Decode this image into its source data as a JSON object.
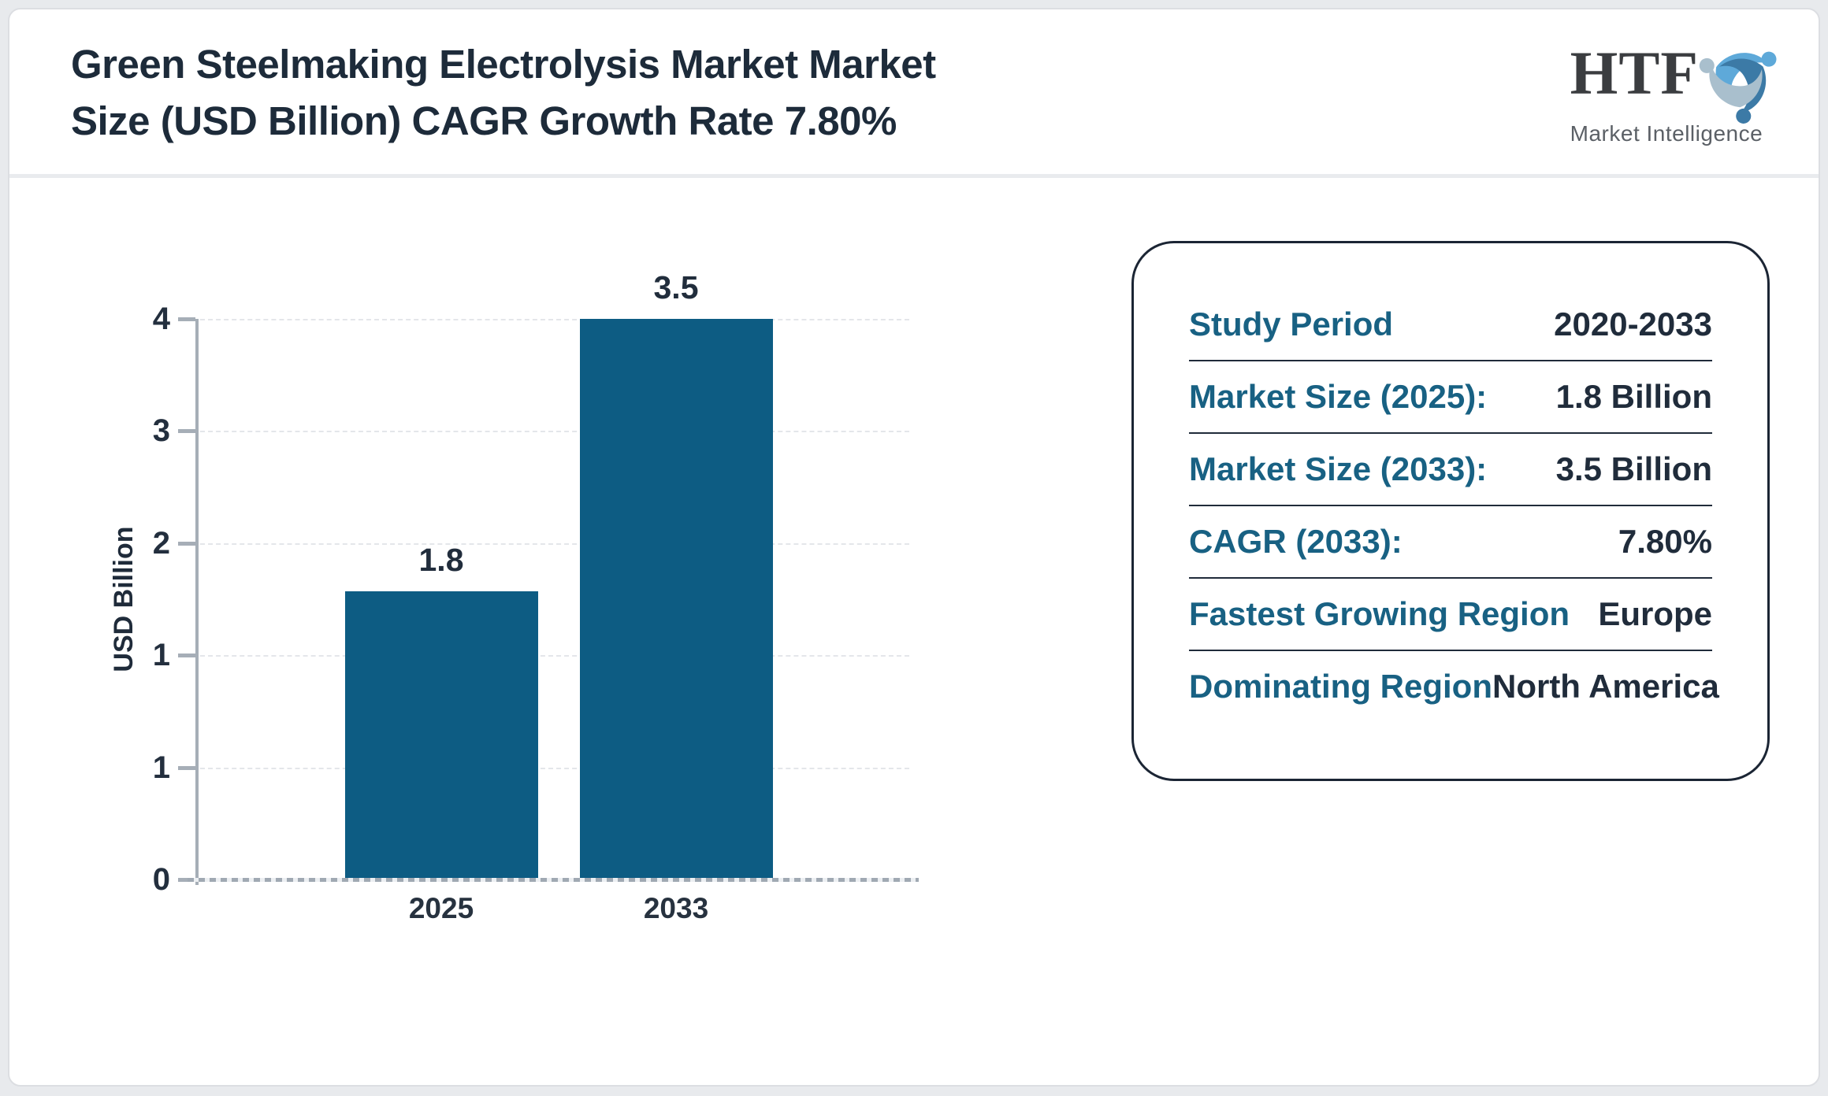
{
  "header": {
    "title": "Green Steelmaking Electrolysis Market Market Size (USD Billion) CAGR Growth Rate 7.80%",
    "title_lines": [
      "Green Steelmaking Electrolysis Market Market",
      "Size (USD Billion) CAGR Growth Rate 7.80%"
    ]
  },
  "logo": {
    "text": "HTF",
    "tagline": "Market Intelligence",
    "icon": "people-swirl-icon"
  },
  "chart_data": {
    "type": "bar",
    "title": "Green Steelmaking Electrolysis Market Market Size (USD Billion) CAGR Growth Rate 7.80%",
    "categories": [
      "2025",
      "2033"
    ],
    "values": [
      1.8,
      3.5
    ],
    "bar_labels": [
      "1.8",
      "3.5"
    ],
    "series": [
      {
        "name": "Market Size (USD Billion)",
        "values": [
          1.8,
          3.5
        ]
      }
    ],
    "xlabel": "",
    "ylabel": "USD Billion",
    "ylim": [
      0,
      3.5
    ],
    "ytick_labels_top_to_bottom": [
      "4",
      "3",
      "2",
      "1",
      "1",
      "0"
    ],
    "grid": "horizontal-dashed",
    "legend": "none",
    "bar_color": "#0d5c83"
  },
  "panel": {
    "rows": [
      {
        "label": "Study Period",
        "value": "2020-2033"
      },
      {
        "label": "Market Size (2025):",
        "value": "1.8 Billion"
      },
      {
        "label": "Market Size (2033):",
        "value": "3.5 Billion"
      },
      {
        "label": "CAGR (2033):",
        "value": "7.80%"
      },
      {
        "label": "Fastest Growing Region",
        "value": "Europe"
      },
      {
        "label": "Dominating Region",
        "value": "North America"
      }
    ]
  },
  "colors": {
    "bar": "#0d5c83",
    "label_teal": "#186183",
    "text_dark": "#202c3b",
    "title": "#1d2b3a",
    "axis_gray": "#a6aeb7",
    "gridline": "#e4e6ea",
    "page_background": "#e8eaed",
    "card_background": "#ffffff",
    "logo_blue_light": "#5ea9d9",
    "logo_blue_dark": "#3c7aa6",
    "logo_gray_blue": "#a9bfcd"
  }
}
